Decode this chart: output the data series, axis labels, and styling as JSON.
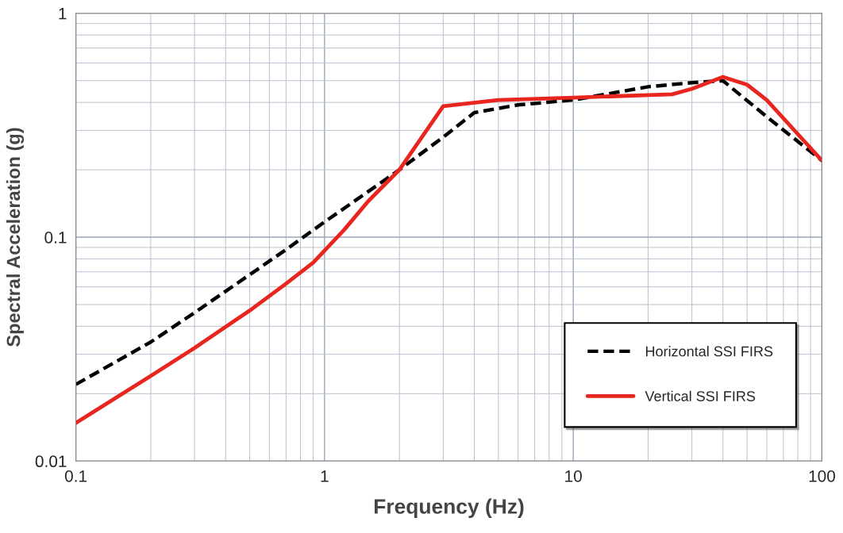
{
  "chart_data": {
    "type": "line",
    "xlabel": "Frequency (Hz)",
    "ylabel": "Spectral Acceleration (g)",
    "log": "xy",
    "xlim": [
      0.1,
      100
    ],
    "xticks": [
      0.1,
      1,
      10,
      100
    ],
    "ylim": [
      0.01,
      1
    ],
    "yticks": [
      0.01,
      0.1,
      1
    ],
    "grid": true,
    "legend": "bottom right",
    "series": [
      {
        "name": "Horizontal SSI FIRS",
        "color": "#000000",
        "line_style": "dashed",
        "x": [
          0.1,
          0.2,
          0.3,
          0.5,
          0.7,
          1,
          1.5,
          2,
          3,
          4,
          6,
          10,
          20,
          30,
          40,
          60,
          100
        ],
        "values": [
          0.022,
          0.034,
          0.046,
          0.068,
          0.088,
          0.117,
          0.16,
          0.2,
          0.28,
          0.36,
          0.39,
          0.41,
          0.47,
          0.49,
          0.5,
          0.345,
          0.22
        ]
      },
      {
        "name": "Vertical SSI FIRS",
        "color": "#e8251f",
        "line_style": "solid",
        "x": [
          0.1,
          0.2,
          0.3,
          0.5,
          0.7,
          0.9,
          1.2,
          1.5,
          2,
          3,
          5,
          10,
          25,
          30,
          40,
          50,
          60,
          100
        ],
        "values": [
          0.0148,
          0.024,
          0.032,
          0.047,
          0.062,
          0.077,
          0.108,
          0.145,
          0.2,
          0.385,
          0.41,
          0.42,
          0.435,
          0.46,
          0.52,
          0.48,
          0.41,
          0.22
        ]
      }
    ]
  }
}
